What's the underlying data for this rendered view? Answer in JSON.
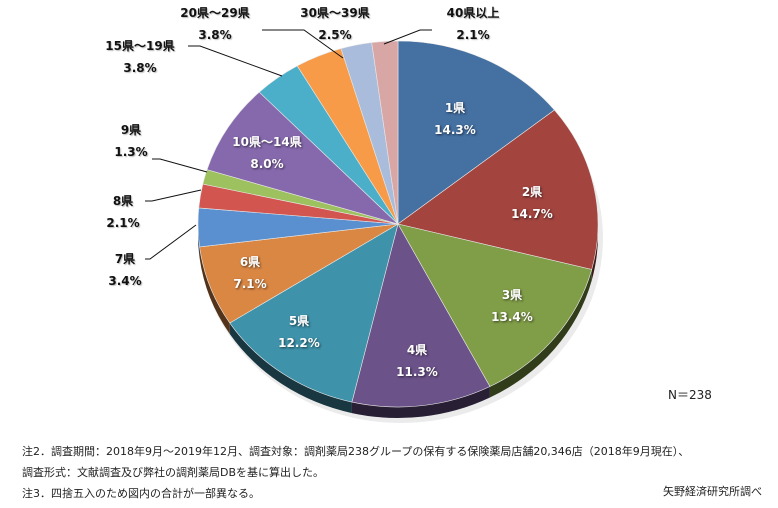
{
  "chart_data": {
    "type": "pie",
    "title": "",
    "start_angle_deg": -90,
    "direction": "clockwise",
    "slices": [
      {
        "label": "1県",
        "value": 14.3,
        "display": "14.3%",
        "color": "#4470A2",
        "label_pos": "inside"
      },
      {
        "label": "2県",
        "value": 14.7,
        "display": "14.7%",
        "color": "#A3443F",
        "label_pos": "inside"
      },
      {
        "label": "3県",
        "value": 13.4,
        "display": "13.4%",
        "color": "#809D48",
        "label_pos": "inside"
      },
      {
        "label": "4県",
        "value": 11.3,
        "display": "11.3%",
        "color": "#6B5289",
        "label_pos": "inside"
      },
      {
        "label": "5県",
        "value": 12.2,
        "display": "12.2%",
        "color": "#3E92AA",
        "label_pos": "inside"
      },
      {
        "label": "6県",
        "value": 7.1,
        "display": "7.1%",
        "color": "#DA8744",
        "label_pos": "inside"
      },
      {
        "label": "7県",
        "value": 3.4,
        "display": "3.4%",
        "color": "#5A8FD0",
        "label_pos": "outside"
      },
      {
        "label": "8県",
        "value": 2.1,
        "display": "2.1%",
        "color": "#D3554F",
        "label_pos": "outside"
      },
      {
        "label": "9県",
        "value": 1.3,
        "display": "1.3%",
        "color": "#9EC15F",
        "label_pos": "outside"
      },
      {
        "label": "10県～14県",
        "value": 8.0,
        "display": "8.0%",
        "color": "#8669AD",
        "label_pos": "inside"
      },
      {
        "label": "15県～19県",
        "value": 3.8,
        "display": "3.8%",
        "color": "#4CAFC9",
        "label_pos": "outside"
      },
      {
        "label": "20県～29県",
        "value": 3.8,
        "display": "3.8%",
        "color": "#F79B48",
        "label_pos": "outside"
      },
      {
        "label": "30県～39県",
        "value": 2.5,
        "display": "2.5%",
        "color": "#A9BCDB",
        "label_pos": "outside"
      },
      {
        "label": "40県以上",
        "value": 2.1,
        "display": "2.1%",
        "color": "#D9A6A6",
        "label_pos": "outside"
      }
    ],
    "annotation": "N＝238",
    "legend": "none"
  },
  "notes": {
    "line1": "注2．調査期間：2018年9月～2019年12月、調査対象：調剤薬局238グループの保有する保険薬局店舗20,346店（2018年9月現在）、",
    "line2": "調査形式：文献調査及び弊社の調剤薬局DBを基に算出した。",
    "line3": "注3．四捨五入のため図内の合計が一部異なる。"
  },
  "source": "矢野経済研究所調べ"
}
